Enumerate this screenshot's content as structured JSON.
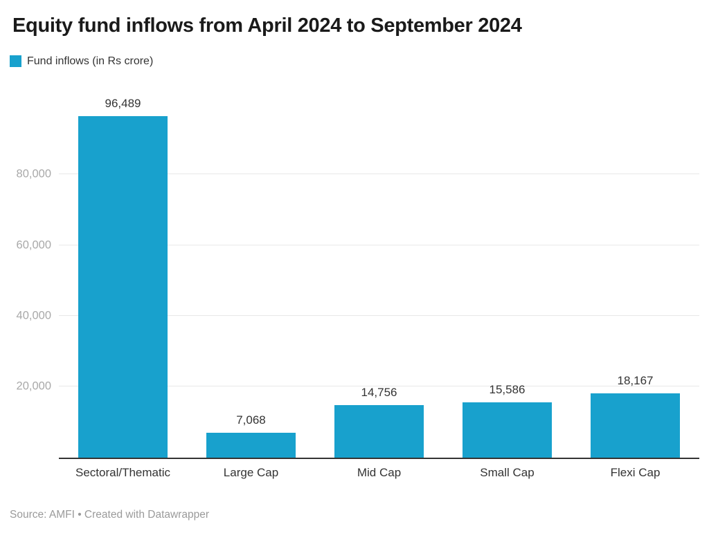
{
  "header": {
    "title": "Equity fund inflows from April 2024 to September 2024"
  },
  "legend": {
    "label": "Fund inflows (in Rs crore)"
  },
  "footer": {
    "text": "Source: AMFI • Created with Datawrapper"
  },
  "colors": {
    "bar": "#18a1cd",
    "title": "#1a1a1a",
    "axis_line": "#333333",
    "gridline": "#e8e8e8",
    "ytick_label": "#a9a9a9",
    "value_label": "#333333",
    "footer": "#9a9a9a"
  },
  "chart_data": {
    "type": "bar",
    "title": "Equity fund inflows from April 2024 to September 2024",
    "series_name": "Fund inflows (in Rs crore)",
    "categories": [
      "Sectoral/Thematic",
      "Large Cap",
      "Mid Cap",
      "Small Cap",
      "Flexi Cap"
    ],
    "values": [
      96489,
      7068,
      14756,
      15586,
      18167
    ],
    "value_labels": [
      "96,489",
      "7,068",
      "14,756",
      "15,586",
      "18,167"
    ],
    "xlabel": "",
    "ylabel": "Fund inflows (in Rs crore)",
    "ylim": [
      0,
      100000
    ],
    "yticks": [
      20000,
      40000,
      60000,
      80000
    ],
    "ytick_labels": [
      "20,000",
      "40,000",
      "60,000",
      "80,000"
    ],
    "grid": true,
    "legend_position": "top-left",
    "source": "AMFI",
    "attribution": "Created with Datawrapper"
  }
}
